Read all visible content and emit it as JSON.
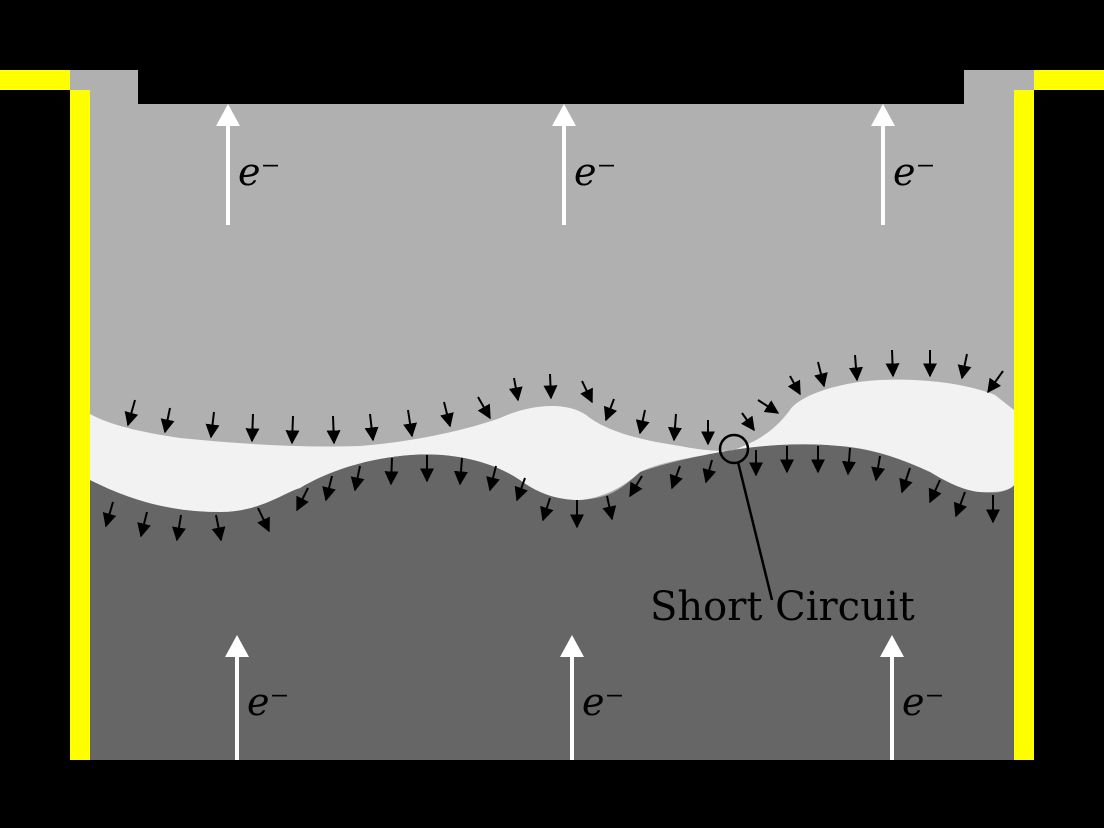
{
  "diagram": {
    "annotation": "Short Circuit",
    "electron_label": "e⁻",
    "electron_arrow_count": 6,
    "colors": {
      "background": "#000000",
      "upper_region": "#b0b0b0",
      "lower_region": "#666666",
      "gap_region": "#f2f2f2",
      "side_walls": "#ffff00",
      "arrows_electron": "#ffffff",
      "arrows_small": "#000000"
    }
  }
}
